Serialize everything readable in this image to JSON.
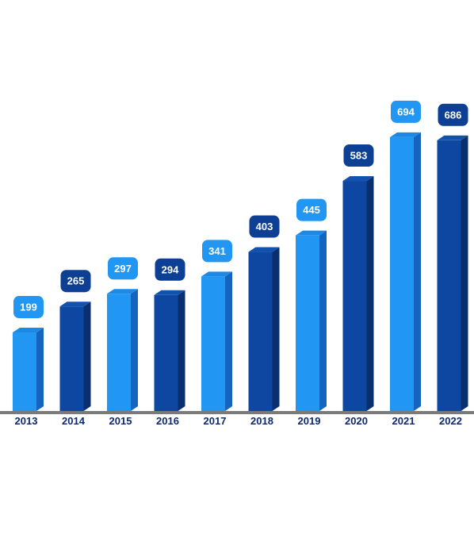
{
  "chart_data": {
    "type": "bar",
    "title": "",
    "xlabel": "",
    "ylabel": "",
    "categories": [
      "2013",
      "2014",
      "2015",
      "2016",
      "2017",
      "2018",
      "2019",
      "2020",
      "2021",
      "2022"
    ],
    "values": [
      199,
      265,
      297,
      294,
      341,
      403,
      445,
      583,
      694,
      686
    ],
    "data_labels": [
      "199",
      "265",
      "297",
      "294",
      "341",
      "403",
      "445",
      "583",
      "694",
      "686"
    ],
    "ylim": [
      0,
      760
    ],
    "grid": false,
    "legend": "none",
    "style": "3d-bars-alternating-colors",
    "colors": {
      "light_bar": "#2196f3",
      "light_bar_side": "#1565c0",
      "light_bar_top": "#1e88e5",
      "dark_bar": "#0d47a1",
      "dark_bar_side": "#0a2f6e",
      "dark_bar_top": "#1251ad",
      "light_label_bg": "#2196f3",
      "dark_label_bg": "#0d3f94",
      "baseline": "#7a7a7a",
      "tick_text": "#0d2a6b"
    }
  }
}
